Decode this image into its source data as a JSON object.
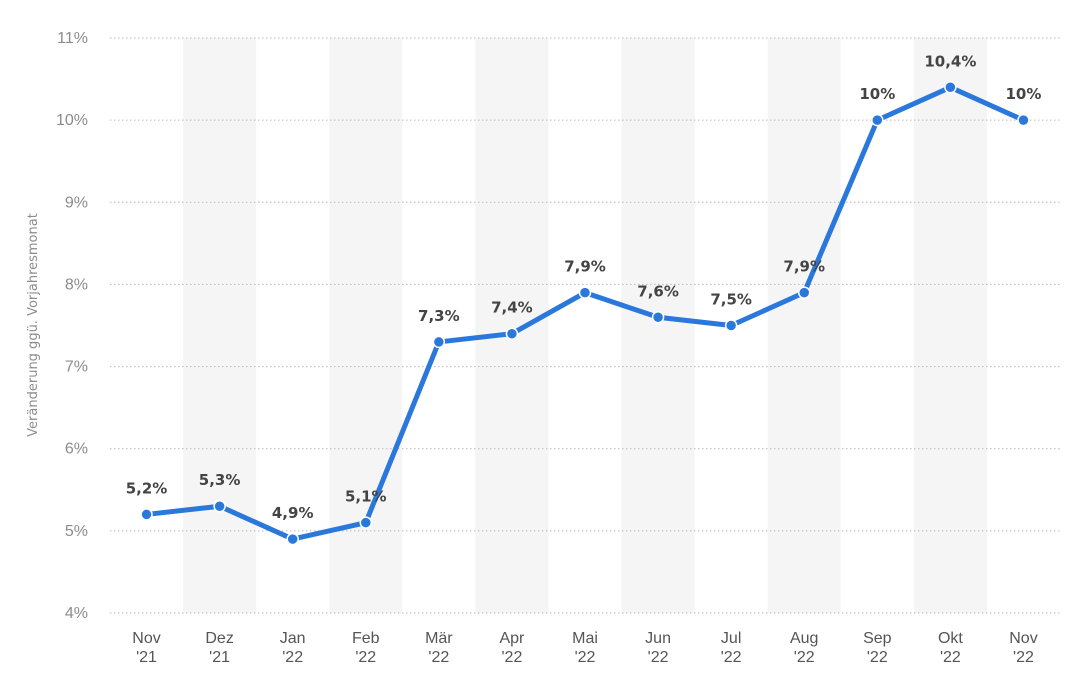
{
  "chart_data": {
    "type": "line",
    "title": "",
    "xlabel": "",
    "ylabel": "Veränderung ggü. Vorjahresmonat",
    "ylim": [
      4,
      11
    ],
    "yticks": [
      4,
      5,
      6,
      7,
      8,
      9,
      10,
      11
    ],
    "ytick_labels": [
      "4%",
      "5%",
      "6%",
      "7%",
      "8%",
      "9%",
      "10%",
      "11%"
    ],
    "grid": true,
    "legend": "none",
    "categories": [
      [
        "Nov",
        "'21"
      ],
      [
        "Dez",
        "'21"
      ],
      [
        "Jan",
        "'22"
      ],
      [
        "Feb",
        "'22"
      ],
      [
        "Mär",
        "'22"
      ],
      [
        "Apr",
        "'22"
      ],
      [
        "Mai",
        "'22"
      ],
      [
        "Jun",
        "'22"
      ],
      [
        "Jul",
        "'22"
      ],
      [
        "Aug",
        "'22"
      ],
      [
        "Sep",
        "'22"
      ],
      [
        "Okt",
        "'22"
      ],
      [
        "Nov",
        "'22"
      ]
    ],
    "series": [
      {
        "values": [
          5.2,
          5.3,
          4.9,
          5.1,
          7.3,
          7.4,
          7.9,
          7.6,
          7.5,
          7.9,
          10.0,
          10.4,
          10.0
        ],
        "labels": [
          "5,2%",
          "5,3%",
          "4,9%",
          "5,1%",
          "7,3%",
          "7,4%",
          "7,9%",
          "7,6%",
          "7,5%",
          "7,9%",
          "10%",
          "10,4%",
          "10%"
        ],
        "color": "#2a78dc"
      }
    ]
  }
}
